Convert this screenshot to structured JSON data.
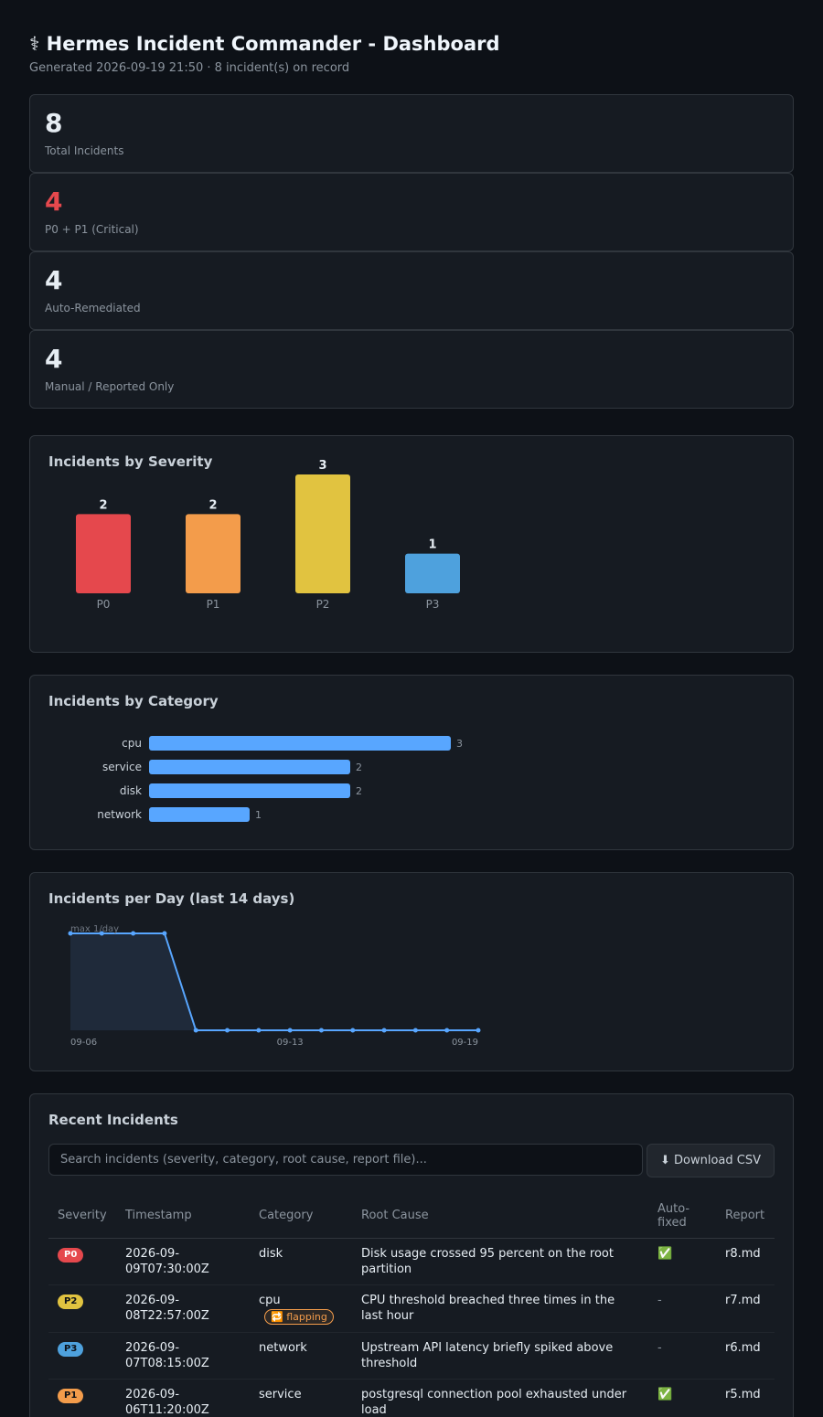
{
  "header": {
    "title": "⚕ Hermes Incident Commander - Dashboard",
    "subtitle": "Generated 2026-09-19 21:50 · 8 incident(s) on record"
  },
  "stats": [
    {
      "value": "8",
      "label": "Total Incidents"
    },
    {
      "value": "4",
      "label": "P0 + P1 (Critical)"
    },
    {
      "value": "4",
      "label": "Auto-Remediated"
    },
    {
      "value": "4",
      "label": "Manual / Reported Only"
    }
  ],
  "colors": {
    "P0": "#e5484d",
    "P1": "#f39c4b",
    "P2": "#e1c340",
    "P3": "#4ea1dd",
    "accent": "#58a6ff"
  },
  "severity_panel": {
    "title": "Incidents by Severity"
  },
  "category_panel": {
    "title": "Incidents by Category"
  },
  "daily_panel": {
    "title": "Incidents per Day (last 14 days)",
    "max_label": "max 1/day"
  },
  "chart_data": [
    {
      "type": "bar",
      "title": "Incidents by Severity",
      "categories": [
        "P0",
        "P1",
        "P2",
        "P3"
      ],
      "values": [
        2,
        2,
        3,
        1
      ]
    },
    {
      "type": "bar",
      "orientation": "horizontal",
      "title": "Incidents by Category",
      "categories": [
        "cpu",
        "service",
        "disk",
        "network"
      ],
      "values": [
        3,
        2,
        2,
        1
      ]
    },
    {
      "type": "area",
      "title": "Incidents per Day (last 14 days)",
      "x": [
        "09-06",
        "09-07",
        "09-08",
        "09-09",
        "09-10",
        "09-11",
        "09-12",
        "09-13",
        "09-14",
        "09-15",
        "09-16",
        "09-17",
        "09-18",
        "09-19"
      ],
      "values": [
        1,
        1,
        1,
        1,
        0,
        0,
        0,
        0,
        0,
        0,
        0,
        0,
        0,
        0
      ],
      "tick_labels": [
        "09-06",
        "09-13",
        "09-19"
      ],
      "ylim": [
        0,
        1
      ]
    }
  ],
  "incidents_panel": {
    "title": "Recent Incidents",
    "search_placeholder": "Search incidents (severity, category, root cause, report file)...",
    "download_label": "⬇ Download CSV",
    "columns": [
      "Severity",
      "Timestamp",
      "Category",
      "Root Cause",
      "Auto-fixed",
      "Report"
    ],
    "rows": [
      {
        "severity": "P0",
        "timestamp": "2026-09-09T07:30:00Z",
        "category": "disk",
        "flag": "",
        "root_cause": "Disk usage crossed 95 percent on the root partition",
        "auto_fixed": "✅",
        "report": "r8.md"
      },
      {
        "severity": "P2",
        "timestamp": "2026-09-08T22:57:00Z",
        "category": "cpu",
        "flag": "🔁 flapping",
        "root_cause": "CPU threshold breached three times in the last hour",
        "auto_fixed": "-",
        "report": "r7.md"
      },
      {
        "severity": "P3",
        "timestamp": "2026-09-07T08:15:00Z",
        "category": "network",
        "flag": "",
        "root_cause": "Upstream API latency briefly spiked above threshold",
        "auto_fixed": "-",
        "report": "r6.md"
      },
      {
        "severity": "P1",
        "timestamp": "2026-09-06T11:20:00Z",
        "category": "service",
        "flag": "",
        "root_cause": "postgresql connection pool exhausted under load",
        "auto_fixed": "✅",
        "report": "r5.md"
      }
    ]
  }
}
